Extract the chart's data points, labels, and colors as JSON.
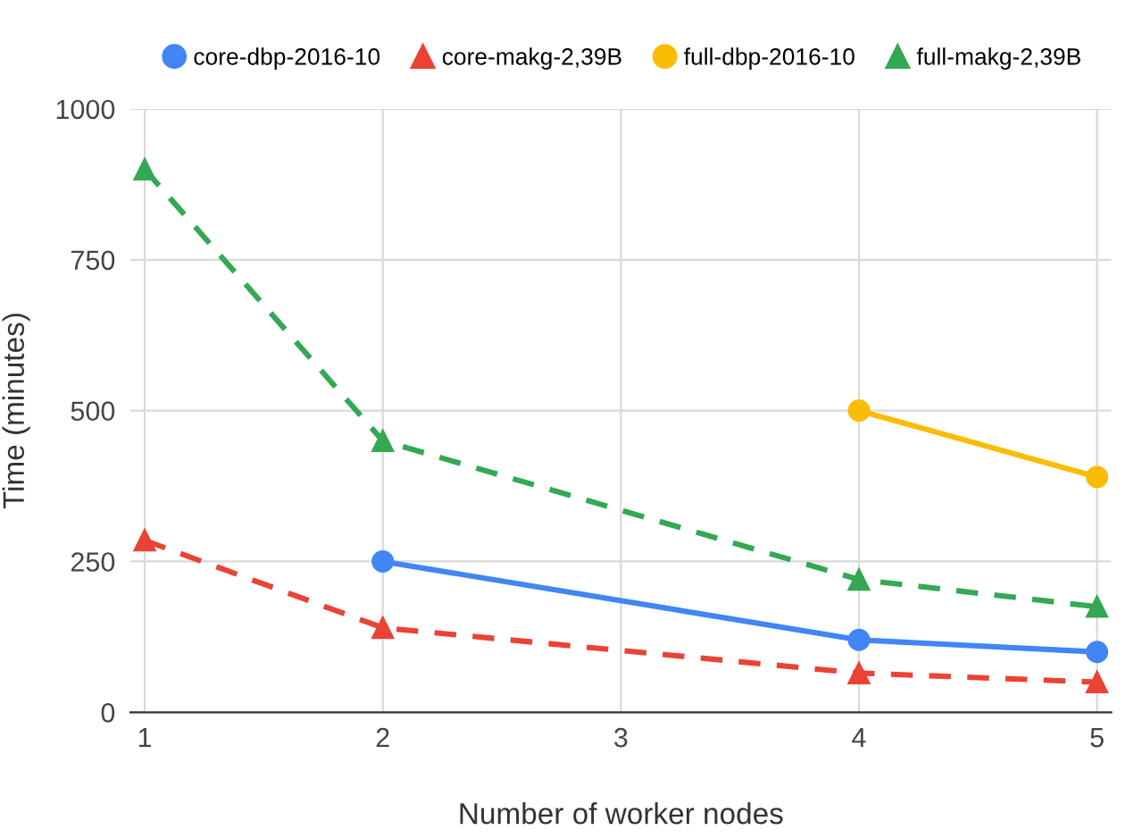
{
  "chart_data": {
    "type": "line",
    "xlabel": "Number of worker nodes",
    "ylabel": "Time (minutes)",
    "xlim": [
      0.94,
      5.06
    ],
    "xticks": [
      1,
      2,
      3,
      4,
      5
    ],
    "ylim": [
      0,
      1000
    ],
    "yticks": [
      0,
      250,
      500,
      750,
      1000
    ],
    "grid": true,
    "legend": "top",
    "series": [
      {
        "name": "core-dbp-2016-10",
        "color": "#4285f4",
        "marker": "circle",
        "line_style": "solid",
        "x": [
          2,
          4,
          5
        ],
        "values": [
          250,
          120,
          100
        ]
      },
      {
        "name": "core-makg-2,39B",
        "color": "#ea4335",
        "marker": "triangle",
        "line_style": "dashed",
        "x": [
          1,
          2,
          4,
          5
        ],
        "values": [
          285,
          140,
          65,
          50
        ]
      },
      {
        "name": "full-dbp-2016-10",
        "color": "#fbbc04",
        "marker": "circle",
        "line_style": "solid",
        "x": [
          4,
          5
        ],
        "values": [
          500,
          390
        ]
      },
      {
        "name": "full-makg-2,39B",
        "color": "#34a853",
        "marker": "triangle",
        "line_style": "dashed",
        "x": [
          1,
          2,
          4,
          5
        ],
        "values": [
          900,
          450,
          220,
          175
        ]
      }
    ]
  }
}
